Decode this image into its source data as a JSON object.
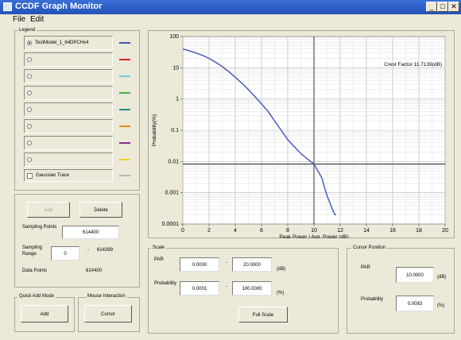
{
  "window": {
    "title": "CCDF Graph Monitor"
  },
  "menu": [
    {
      "label": "File"
    },
    {
      "label": "Edit"
    }
  ],
  "legend": {
    "title": "Legend",
    "traces": [
      {
        "name": "TestModel_1_64DPCHx4",
        "color": "#3f55b8",
        "selected": true
      },
      {
        "name": "",
        "color": "#e02020",
        "selected": false
      },
      {
        "name": "",
        "color": "#6cc8e8",
        "selected": false
      },
      {
        "name": "",
        "color": "#40b040",
        "selected": false
      },
      {
        "name": "",
        "color": "#2a8a8a",
        "selected": false
      },
      {
        "name": "",
        "color": "#f08a20",
        "selected": false
      },
      {
        "name": "",
        "color": "#8a2a9a",
        "selected": false
      },
      {
        "name": "",
        "color": "#e8d820",
        "selected": false
      }
    ],
    "gaussian": {
      "label": "Gaussian Trace",
      "color": "#b8b8b8"
    }
  },
  "controls": {
    "add_label": "Add",
    "delete_label": "Delete",
    "sampling_points_label": "Sampling Points",
    "sampling_points_value": "614400",
    "sampling_range_label": "Sampling Range",
    "sampling_range_from": "0",
    "sampling_range_sep": "-",
    "sampling_range_to": "614399",
    "data_points_label": "Data Points",
    "data_points_value": "614400"
  },
  "quick_add": {
    "title": "Quick Add Mode",
    "button": "Add"
  },
  "mouse": {
    "title": "Mouse Interaction",
    "button": "Cursor"
  },
  "scale": {
    "title": "Scale",
    "par_label": "PAR",
    "par_min": "0.0000",
    "par_max": "20.0000",
    "par_unit": "(dB)",
    "prob_label": "Probability",
    "prob_min": "0.0001",
    "prob_max": "100.0000",
    "prob_unit": "(%)",
    "dash": "-",
    "full_scale": "Full Scale"
  },
  "cursor_position": {
    "title": "Cursor Position",
    "par_label": "PAR",
    "par_value": "10.0000",
    "par_unit": "(dB)",
    "prob_label": "Probability",
    "prob_value": "0.0083",
    "prob_unit": "(%)"
  },
  "chart_data": {
    "type": "line",
    "xlabel": "Peak Power / Avg. Power (dB)",
    "ylabel": "Probability(%)",
    "xlim": [
      0,
      20
    ],
    "ylim": [
      0.0001,
      100
    ],
    "yscale": "log",
    "x_ticks": [
      "0",
      "2",
      "4",
      "6",
      "8",
      "10",
      "12",
      "14",
      "16",
      "18",
      "20"
    ],
    "y_ticks": [
      "100",
      "10",
      "1",
      "0.1",
      "0.01",
      "0.001",
      "0.0001"
    ],
    "grid": true,
    "annotation": "Crest Factor 11.7139(dB)",
    "cursor": {
      "x": 10,
      "y": 0.0083
    },
    "series": [
      {
        "color": "#3f55b8",
        "x": [
          0,
          0.5,
          1,
          1.5,
          2,
          2.5,
          3,
          3.5,
          4,
          4.5,
          5,
          5.5,
          6,
          6.5,
          7,
          7.5,
          8,
          8.5,
          9,
          9.5,
          10,
          10.3,
          10.6,
          10.8,
          11,
          11.2,
          11.4,
          11.6,
          11.7
        ],
        "y": [
          40,
          35,
          30,
          25,
          20,
          15,
          11,
          7.5,
          5,
          3.2,
          2,
          1.2,
          0.7,
          0.4,
          0.2,
          0.1,
          0.05,
          0.03,
          0.018,
          0.012,
          0.0083,
          0.005,
          0.003,
          0.0015,
          0.0008,
          0.0005,
          0.0003,
          0.0002,
          0.0002
        ]
      }
    ]
  }
}
